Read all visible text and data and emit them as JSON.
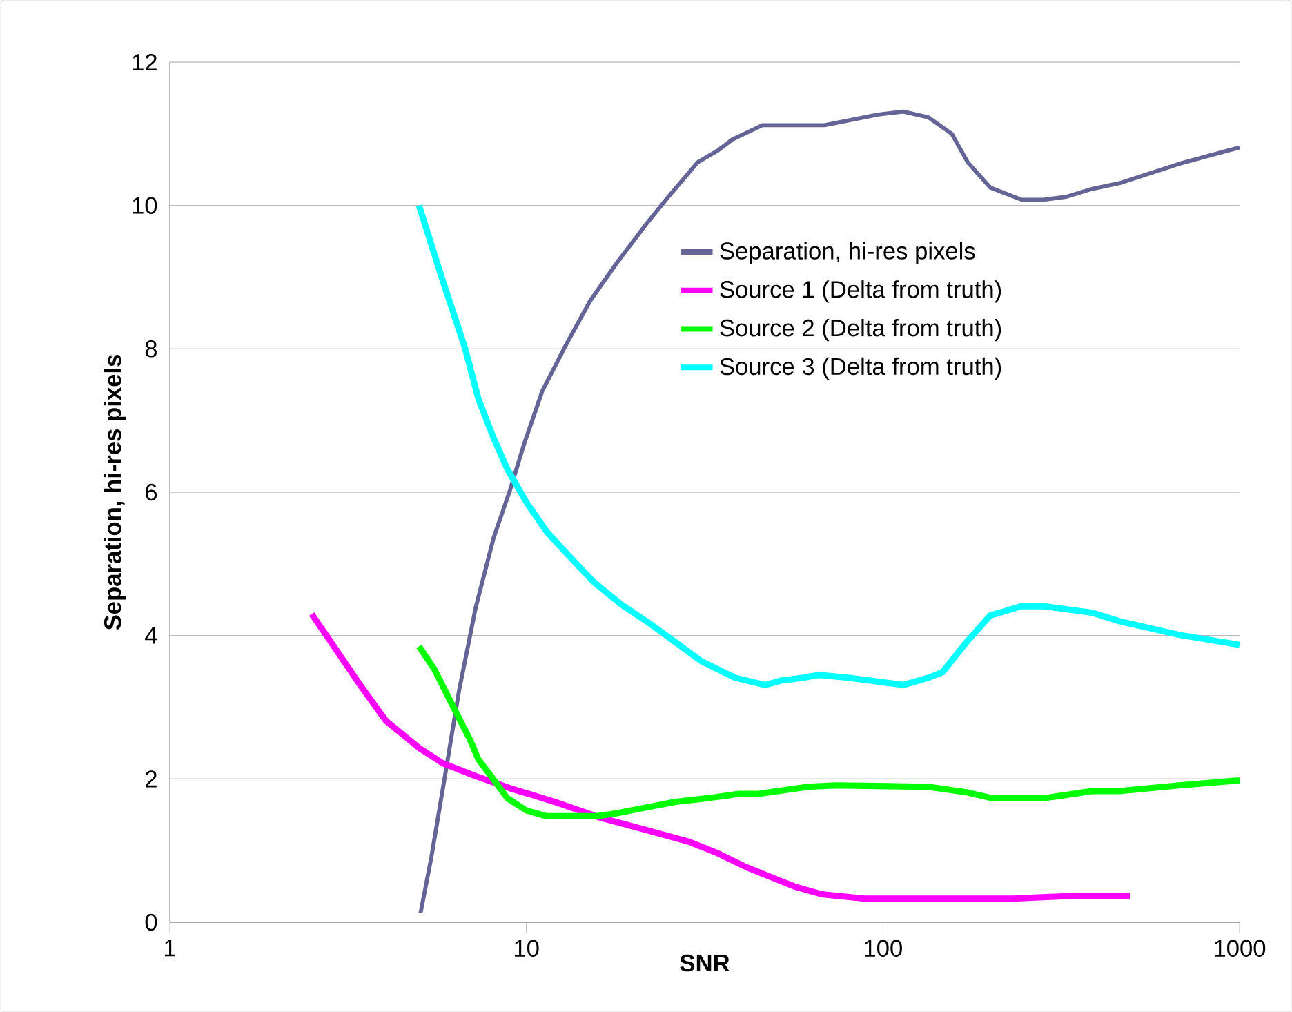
{
  "chart_data": {
    "type": "line",
    "xlabel": "SNR",
    "ylabel": "Separation, hi-res pixels",
    "log": "x",
    "xlim": [
      1,
      1000
    ],
    "xticks": [
      1,
      10,
      100,
      1000
    ],
    "ylim": [
      0,
      12
    ],
    "yticks": [
      0,
      2,
      4,
      6,
      8,
      10,
      12
    ],
    "grid": "y",
    "legend": "right",
    "marker": "none",
    "line_style": "solid",
    "series": [
      {
        "name": "Separation, hi-res pixels",
        "color": "#646496",
        "x": [
          5.05,
          5.42,
          5.93,
          6.48,
          7.21,
          8.09,
          9.0,
          9.85,
          11.1,
          12.9,
          15.1,
          18.0,
          21.6,
          25.1,
          30.2,
          34.5,
          37.8,
          45.9,
          68.6,
          97,
          114,
          134,
          156,
          173,
          200,
          245,
          282,
          326,
          385,
          460,
          676,
          1000
        ],
        "values": [
          0.13,
          0.92,
          2.08,
          3.24,
          4.39,
          5.36,
          6.03,
          6.67,
          7.42,
          8.05,
          8.67,
          9.21,
          9.73,
          10.13,
          10.6,
          10.77,
          10.92,
          11.12,
          11.12,
          11.27,
          11.31,
          11.23,
          11.0,
          10.6,
          10.25,
          10.08,
          10.08,
          10.12,
          10.23,
          10.31,
          10.58,
          10.81
        ]
      },
      {
        "name": "Source 1 (Delta from truth)",
        "color": "#ff00ff",
        "x": [
          2.5,
          2.83,
          3.44,
          4.04,
          5.01,
          5.82,
          7.21,
          9.0,
          12.0,
          16.1,
          21.6,
          28.7,
          34.5,
          41.3,
          56.4,
          67.4,
          88.8,
          232,
          347,
          494
        ],
        "values": [
          4.3,
          3.91,
          3.29,
          2.81,
          2.43,
          2.22,
          2.04,
          1.87,
          1.68,
          1.46,
          1.29,
          1.12,
          0.96,
          0.77,
          0.5,
          0.39,
          0.33,
          0.33,
          0.37,
          0.37
        ]
      },
      {
        "name": "Source 2 (Delta from truth)",
        "color": "#00ff00",
        "x": [
          5.0,
          5.52,
          6.26,
          6.96,
          7.34,
          7.96,
          8.85,
          10,
          11.4,
          15.8,
          17.9,
          21.6,
          26.2,
          32.2,
          39.2,
          44.4,
          61.6,
          73.6,
          134,
          173,
          203,
          282,
          385,
          460,
          676,
          1000
        ],
        "values": [
          3.85,
          3.53,
          2.99,
          2.54,
          2.27,
          2.04,
          1.73,
          1.56,
          1.48,
          1.48,
          1.52,
          1.6,
          1.68,
          1.73,
          1.79,
          1.79,
          1.89,
          1.91,
          1.89,
          1.81,
          1.73,
          1.73,
          1.83,
          1.83,
          1.91,
          1.98
        ]
      },
      {
        "name": "Source 3 (Delta from truth)",
        "color": "#00ffff",
        "x": [
          5.0,
          5.82,
          6.72,
          7.34,
          8.1,
          8.85,
          10.0,
          11.4,
          13.0,
          15.5,
          18.5,
          22.3,
          25.8,
          31.0,
          38.5,
          46.8,
          51.6,
          59.4,
          66.2,
          80.5,
          114,
          134,
          147,
          173,
          200,
          245,
          282,
          385,
          460,
          676,
          1000
        ],
        "values": [
          10.0,
          8.96,
          8.02,
          7.3,
          6.75,
          6.32,
          5.86,
          5.45,
          5.14,
          4.74,
          4.43,
          4.16,
          3.93,
          3.64,
          3.41,
          3.31,
          3.37,
          3.41,
          3.45,
          3.41,
          3.31,
          3.41,
          3.49,
          3.93,
          4.28,
          4.41,
          4.41,
          4.32,
          4.2,
          4.01,
          3.87
        ]
      }
    ]
  }
}
